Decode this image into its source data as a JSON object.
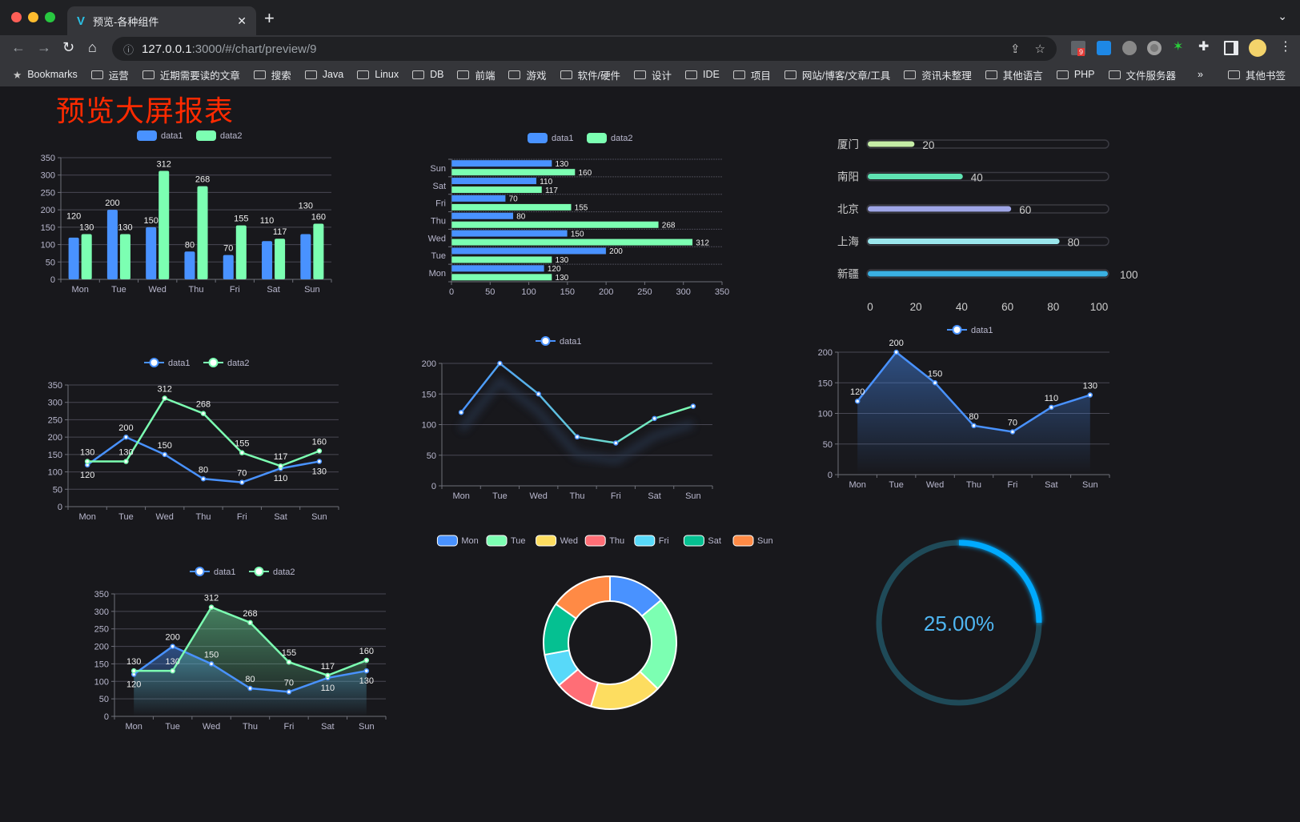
{
  "browser": {
    "tab_title": "预览-各种组件",
    "url_host": "127.0.0.1",
    "url_path": ":3000/#/chart/preview/9",
    "extension_badge": "9",
    "bookmarks": [
      "Bookmarks",
      "运营",
      "近期需要读的文章",
      "搜索",
      "Java",
      "Linux",
      "DB",
      "前端",
      "游戏",
      "软件/硬件",
      "设计",
      "IDE",
      "项目",
      "网站/博客/文章/工具",
      "资讯未整理",
      "其他语言",
      "PHP",
      "文件服务器"
    ],
    "overflow": "»",
    "other_bookmarks": "其他书签"
  },
  "page": {
    "title": "预览大屏报表",
    "title_color": "#ff2a00"
  },
  "colors": {
    "blue": "#4992ff",
    "green": "#7cffb2",
    "yellow": "#fddd60",
    "red": "#ff6e76",
    "cyan": "#58d9f9",
    "teal": "#05c091",
    "orange": "#ff8a45"
  },
  "chart_data": [
    {
      "type": "bar",
      "categories": [
        "Mon",
        "Tue",
        "Wed",
        "Thu",
        "Fri",
        "Sat",
        "Sun"
      ],
      "ylim": [
        0,
        350
      ],
      "yticks": [
        0,
        50,
        100,
        150,
        200,
        250,
        300,
        350
      ],
      "legend": "top",
      "grid": true,
      "series": [
        {
          "name": "data1",
          "values": [
            120,
            200,
            150,
            80,
            70,
            110,
            130
          ],
          "color": "#4992ff"
        },
        {
          "name": "data2",
          "values": [
            130,
            130,
            312,
            268,
            155,
            117,
            160
          ],
          "color": "#7cffb2"
        }
      ]
    },
    {
      "type": "bar",
      "orientation": "horizontal",
      "categories": [
        "Mon",
        "Tue",
        "Wed",
        "Thu",
        "Fri",
        "Sat",
        "Sun"
      ],
      "xlim": [
        0,
        350
      ],
      "xticks": [
        0,
        50,
        100,
        150,
        200,
        250,
        300,
        350
      ],
      "legend": "top",
      "grid": true,
      "series": [
        {
          "name": "data1",
          "values": [
            120,
            200,
            150,
            80,
            70,
            110,
            130
          ],
          "color": "#4992ff"
        },
        {
          "name": "data2",
          "values": [
            130,
            130,
            312,
            268,
            155,
            117,
            160
          ],
          "color": "#7cffb2"
        }
      ]
    },
    {
      "type": "bar",
      "orientation": "horizontal",
      "style": "progress",
      "categories": [
        "厦门",
        "南阳",
        "北京",
        "上海",
        "新疆"
      ],
      "values": [
        20,
        40,
        60,
        80,
        100
      ],
      "colors": [
        "#c6eda6",
        "#5fe3b3",
        "#9ea5e6",
        "#9ae6ec",
        "#3ab0e2"
      ],
      "xlim": [
        0,
        100
      ],
      "xticks": [
        0,
        20,
        40,
        60,
        80,
        100
      ]
    },
    {
      "type": "line",
      "categories": [
        "Mon",
        "Tue",
        "Wed",
        "Thu",
        "Fri",
        "Sat",
        "Sun"
      ],
      "ylim": [
        0,
        350
      ],
      "yticks": [
        0,
        50,
        100,
        150,
        200,
        250,
        300,
        350
      ],
      "legend": "top",
      "grid": true,
      "series": [
        {
          "name": "data1",
          "values": [
            120,
            200,
            150,
            80,
            70,
            110,
            130
          ],
          "color": "#4992ff"
        },
        {
          "name": "data2",
          "values": [
            130,
            130,
            312,
            268,
            155,
            117,
            160
          ],
          "color": "#7cffb2"
        }
      ]
    },
    {
      "type": "line",
      "categories": [
        "Mon",
        "Tue",
        "Wed",
        "Thu",
        "Fri",
        "Sat",
        "Sun"
      ],
      "ylim": [
        0,
        200
      ],
      "yticks": [
        0,
        50,
        100,
        150,
        200
      ],
      "legend": "top",
      "grid": true,
      "gradient": [
        "#4992ff",
        "#7cffb2"
      ],
      "series": [
        {
          "name": "data1",
          "values": [
            120,
            200,
            150,
            80,
            70,
            110,
            130
          ],
          "color": "#4992ff"
        }
      ]
    },
    {
      "type": "area",
      "categories": [
        "Mon",
        "Tue",
        "Wed",
        "Thu",
        "Fri",
        "Sat",
        "Sun"
      ],
      "ylim": [
        0,
        200
      ],
      "yticks": [
        0,
        50,
        100,
        150,
        200
      ],
      "legend": "top",
      "grid": true,
      "series": [
        {
          "name": "data1",
          "values": [
            120,
            200,
            150,
            80,
            70,
            110,
            130
          ],
          "color": "#4992ff"
        }
      ]
    },
    {
      "type": "area",
      "categories": [
        "Mon",
        "Tue",
        "Wed",
        "Thu",
        "Fri",
        "Sat",
        "Sun"
      ],
      "ylim": [
        0,
        350
      ],
      "yticks": [
        0,
        50,
        100,
        150,
        200,
        250,
        300,
        350
      ],
      "legend": "top",
      "grid": true,
      "series": [
        {
          "name": "data1",
          "values": [
            120,
            200,
            150,
            80,
            70,
            110,
            130
          ],
          "color": "#4992ff"
        },
        {
          "name": "data2",
          "values": [
            130,
            130,
            312,
            268,
            155,
            117,
            160
          ],
          "color": "#7cffb2"
        }
      ]
    },
    {
      "type": "pie",
      "style": "donut",
      "categories": [
        "Mon",
        "Tue",
        "Wed",
        "Thu",
        "Fri",
        "Sat",
        "Sun"
      ],
      "values": [
        120,
        200,
        150,
        80,
        70,
        110,
        130
      ],
      "colors": [
        "#4992ff",
        "#7cffb2",
        "#fddd60",
        "#ff6e76",
        "#58d9f9",
        "#05c091",
        "#ff8a45"
      ],
      "legend": "top"
    },
    {
      "type": "gauge",
      "value": 25,
      "label": "25.00%",
      "color": "#00aaff",
      "track_color": "#1f4a58"
    }
  ]
}
